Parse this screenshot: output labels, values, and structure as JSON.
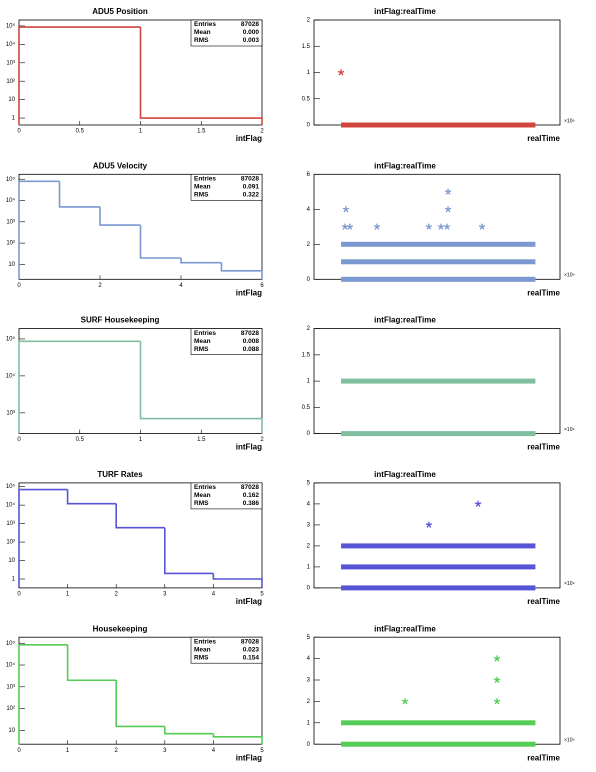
{
  "chart_data": [
    {
      "type": "histogram",
      "title": "ADU5 Position",
      "x_label": "intFlag",
      "color": "#d0453e",
      "log_y": true,
      "bins": [
        0,
        1,
        2
      ],
      "counts": [
        87027,
        1
      ],
      "xlim": [
        0,
        2
      ],
      "xticks": [
        0,
        0.5,
        1,
        1.5,
        2
      ],
      "ylim": [
        0.42,
        210000
      ],
      "yticks": [
        1,
        10,
        {
          "value": 100,
          "label": "10²"
        },
        {
          "value": 1000,
          "label": "10³"
        },
        {
          "value": 10000,
          "label": "10⁴"
        },
        {
          "value": 100000,
          "label": "10⁵"
        }
      ],
      "stats": {
        "labels": [
          "Entries",
          "Mean",
          "RMS"
        ],
        "values": [
          87028,
          0,
          0.003
        ],
        "value_labels": [
          "87028",
          "0.000",
          "0.003"
        ]
      }
    },
    {
      "type": "scatter",
      "title": "intFlag:realTime",
      "x_label": "realTime",
      "x_exponent": "×10⁹",
      "color": "#d0453e",
      "xlim": [
        0,
        100
      ],
      "ylim": [
        0,
        2
      ],
      "yticks": [
        0,
        0.5,
        1,
        1.5,
        2
      ],
      "bands": {
        "y": [
          0
        ],
        "x_start": 11,
        "x_end": 90
      },
      "x": [
        11
      ],
      "y": [
        1
      ]
    },
    {
      "type": "histogram",
      "title": "ADU5 Velocity",
      "x_label": "intFlag",
      "color": "#7b98d0",
      "log_y": true,
      "bins": [
        0,
        1,
        2,
        3,
        4,
        5,
        6
      ],
      "counts": [
        80000,
        5000,
        700,
        20,
        12,
        5
      ],
      "xlim": [
        0,
        6
      ],
      "xticks": [
        0,
        2,
        4,
        6
      ],
      "ylim": [
        2,
        170000
      ],
      "yticks": [
        10,
        {
          "value": 100,
          "label": "10²"
        },
        {
          "value": 1000,
          "label": "10³"
        },
        {
          "value": 10000,
          "label": "10⁴"
        },
        {
          "value": 100000,
          "label": "10⁵"
        }
      ],
      "stats": {
        "labels": [
          "Entries",
          "Mean",
          "RMS"
        ],
        "values": [
          87028,
          0.091,
          0.322
        ],
        "value_labels": [
          "87028",
          "0.091",
          "0.322"
        ]
      }
    },
    {
      "type": "scatter",
      "title": "intFlag:realTime",
      "x_label": "realTime",
      "x_exponent": "×10⁹",
      "color": "#7b98d0",
      "xlim": [
        0,
        100
      ],
      "ylim": [
        0,
        6
      ],
      "yticks": [
        0,
        2,
        4,
        6
      ],
      "bands": {
        "y": [
          0,
          1,
          2
        ],
        "x_start": 11,
        "x_end": 90
      },
      "x": [
        13,
        12.6,
        14.6,
        25.6,
        46.7,
        51.6,
        54.1,
        54.5,
        54.5,
        68.3
      ],
      "y": [
        4,
        3,
        3,
        3,
        3,
        3,
        3,
        4,
        5,
        3
      ]
    },
    {
      "type": "histogram",
      "title": "SURF Housekeeping",
      "x_label": "intFlag",
      "color": "#7fbfa0",
      "log_y": true,
      "bins": [
        0,
        1,
        2
      ],
      "counts": [
        86328,
        700
      ],
      "xlim": [
        0,
        2
      ],
      "xticks": [
        0,
        0.5,
        1,
        1.5,
        2
      ],
      "ylim": [
        275,
        190000
      ],
      "yticks": [
        {
          "value": 1000,
          "label": "10³"
        },
        {
          "value": 10000,
          "label": "10⁴"
        },
        {
          "value": 100000,
          "label": "10⁵"
        }
      ],
      "stats": {
        "labels": [
          "Entries",
          "Mean",
          "RMS"
        ],
        "values": [
          87028,
          0.008,
          0.088
        ],
        "value_labels": [
          "87028",
          "0.008",
          "0.088"
        ]
      }
    },
    {
      "type": "scatter",
      "title": "intFlag:realTime",
      "x_label": "realTime",
      "x_exponent": "×10⁹",
      "color": "#7fbfa0",
      "xlim": [
        0,
        100
      ],
      "ylim": [
        0,
        2
      ],
      "yticks": [
        0,
        0.5,
        1,
        1.5,
        2
      ],
      "bands": {
        "y": [
          0,
          1
        ],
        "x_start": 11,
        "x_end": 90
      },
      "x": [],
      "y": []
    },
    {
      "type": "histogram",
      "title": "TURF Rates",
      "x_label": "intFlag",
      "color": "#5555d5",
      "log_y": true,
      "bins": [
        0,
        1,
        2,
        3,
        4,
        5
      ],
      "counts": [
        70000,
        12000,
        600,
        2,
        1
      ],
      "xlim": [
        0,
        5
      ],
      "xticks": [
        0,
        1,
        2,
        3,
        4,
        5
      ],
      "ylim": [
        0.33,
        160000
      ],
      "yticks": [
        1,
        10,
        {
          "value": 100,
          "label": "10²"
        },
        {
          "value": 1000,
          "label": "10³"
        },
        {
          "value": 10000,
          "label": "10⁴"
        },
        {
          "value": 100000,
          "label": "10⁵"
        }
      ],
      "stats": {
        "labels": [
          "Entries",
          "Mean",
          "RMS"
        ],
        "values": [
          87028,
          0.162,
          0.386
        ],
        "value_labels": [
          "87028",
          "0.162",
          "0.386"
        ]
      }
    },
    {
      "type": "scatter",
      "title": "intFlag:realTime",
      "x_label": "realTime",
      "x_exponent": "×10⁹",
      "color": "#5555d5",
      "xlim": [
        0,
        100
      ],
      "ylim": [
        0,
        5
      ],
      "yticks": [
        0,
        1,
        2,
        3,
        4,
        5
      ],
      "bands": {
        "y": [
          0,
          1,
          2
        ],
        "x_start": 11,
        "x_end": 90
      },
      "x": [
        46.7,
        66.7
      ],
      "y": [
        3,
        4
      ]
    },
    {
      "type": "histogram",
      "title": "Housekeeping",
      "x_label": "intFlag",
      "color": "#55cc55",
      "log_y": true,
      "bins": [
        0,
        1,
        2,
        3,
        4,
        5
      ],
      "counts": [
        85000,
        2000,
        15,
        7,
        5
      ],
      "xlim": [
        0,
        5
      ],
      "xticks": [
        0,
        1,
        2,
        3,
        4,
        5
      ],
      "ylim": [
        2.3,
        190000
      ],
      "yticks": [
        10,
        {
          "value": 100,
          "label": "10²"
        },
        {
          "value": 1000,
          "label": "10³"
        },
        {
          "value": 10000,
          "label": "10⁴"
        },
        {
          "value": 100000,
          "label": "10⁵"
        }
      ],
      "stats": {
        "labels": [
          "Entries",
          "Mean",
          "RMS"
        ],
        "values": [
          87028,
          0.023,
          0.154
        ],
        "value_labels": [
          "87028",
          "0.023",
          "0.154"
        ]
      }
    },
    {
      "type": "scatter",
      "title": "intFlag:realTime",
      "x_label": "realTime",
      "x_exponent": "×10⁹",
      "color": "#55cc55",
      "xlim": [
        0,
        100
      ],
      "ylim": [
        0,
        5
      ],
      "yticks": [
        0,
        1,
        2,
        3,
        4,
        5
      ],
      "bands": {
        "y": [
          0,
          1
        ],
        "x_start": 11,
        "x_end": 90
      },
      "x": [
        37,
        74.4,
        74.4,
        74.4
      ],
      "y": [
        2,
        4,
        3,
        2
      ]
    }
  ]
}
